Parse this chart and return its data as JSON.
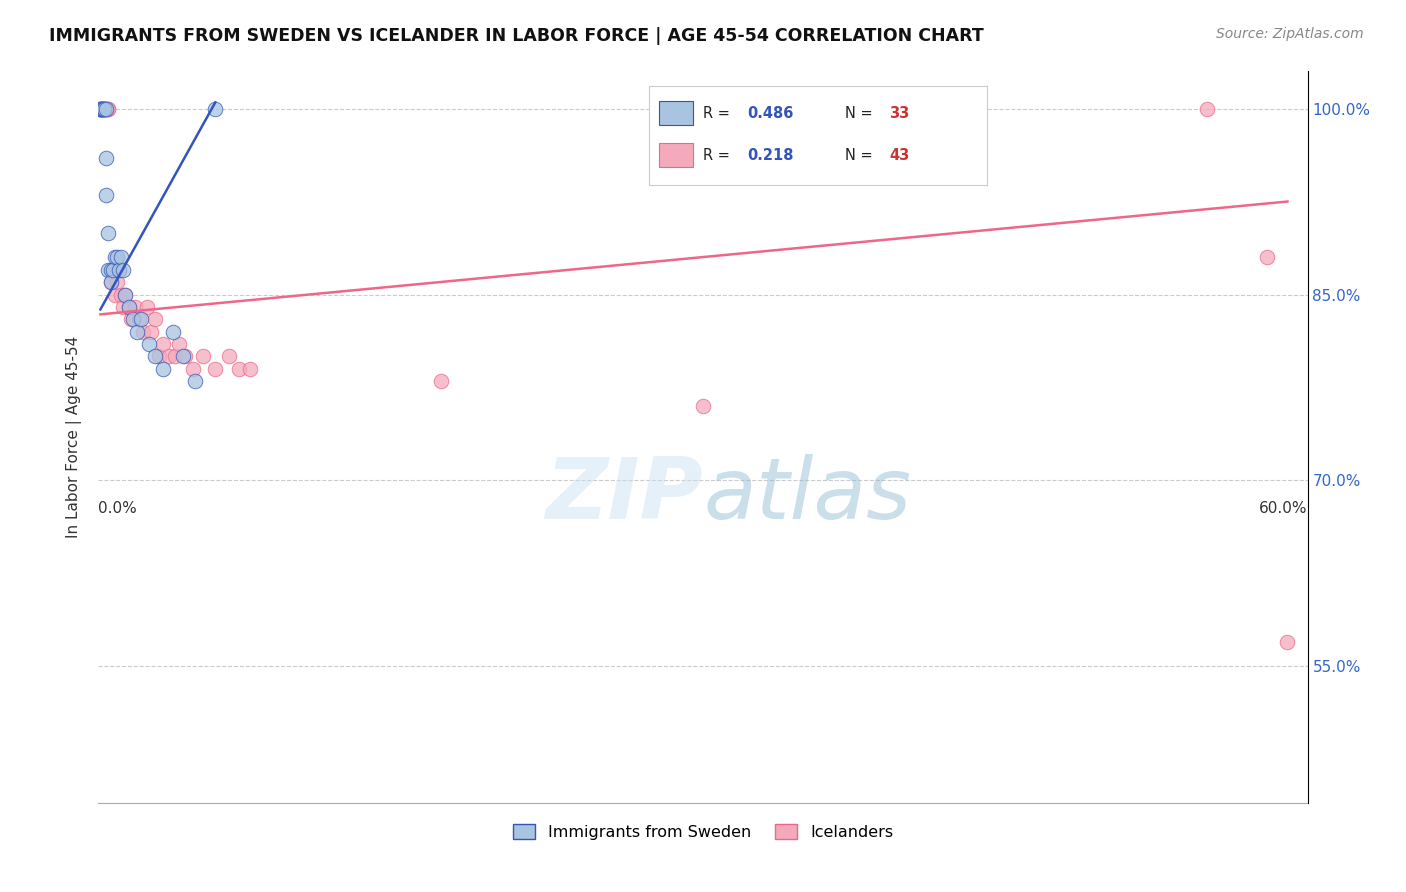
{
  "title": "IMMIGRANTS FROM SWEDEN VS ICELANDER IN LABOR FORCE | AGE 45-54 CORRELATION CHART",
  "source": "Source: ZipAtlas.com",
  "ylabel": "In Labor Force | Age 45-54",
  "ytick_labels": [
    "100.0%",
    "85.0%",
    "70.0%",
    "55.0%"
  ],
  "ytick_values": [
    1.0,
    0.85,
    0.7,
    0.55
  ],
  "xlim": [
    0.0,
    0.6
  ],
  "ylim": [
    0.44,
    1.03
  ],
  "color_blue": "#A8C4E0",
  "color_pink": "#F4AABB",
  "color_blue_line": "#3355BB",
  "color_pink_line": "#EE6688",
  "blue_points_x": [
    0.001,
    0.001,
    0.002,
    0.002,
    0.002,
    0.003,
    0.003,
    0.003,
    0.004,
    0.004,
    0.004,
    0.005,
    0.005,
    0.006,
    0.006,
    0.007,
    0.008,
    0.009,
    0.01,
    0.011,
    0.012,
    0.013,
    0.015,
    0.017,
    0.019,
    0.021,
    0.025,
    0.028,
    0.032,
    0.037,
    0.042,
    0.048,
    0.058
  ],
  "blue_points_y": [
    1.0,
    1.0,
    1.0,
    1.0,
    1.0,
    1.0,
    1.0,
    1.0,
    1.0,
    0.96,
    0.93,
    0.9,
    0.87,
    0.87,
    0.86,
    0.87,
    0.88,
    0.88,
    0.87,
    0.88,
    0.87,
    0.85,
    0.84,
    0.83,
    0.82,
    0.83,
    0.81,
    0.8,
    0.79,
    0.82,
    0.8,
    0.78,
    1.0
  ],
  "pink_points_x": [
    0.001,
    0.001,
    0.002,
    0.002,
    0.003,
    0.003,
    0.004,
    0.004,
    0.005,
    0.005,
    0.006,
    0.007,
    0.008,
    0.009,
    0.01,
    0.011,
    0.012,
    0.013,
    0.015,
    0.016,
    0.018,
    0.02,
    0.022,
    0.024,
    0.026,
    0.028,
    0.03,
    0.032,
    0.035,
    0.038,
    0.04,
    0.043,
    0.047,
    0.052,
    0.058,
    0.065,
    0.07,
    0.075,
    0.17,
    0.3,
    0.55,
    0.58,
    0.59
  ],
  "pink_points_y": [
    1.0,
    1.0,
    1.0,
    1.0,
    1.0,
    1.0,
    1.0,
    1.0,
    1.0,
    1.0,
    0.86,
    0.87,
    0.85,
    0.86,
    0.87,
    0.85,
    0.84,
    0.85,
    0.84,
    0.83,
    0.84,
    0.83,
    0.82,
    0.84,
    0.82,
    0.83,
    0.8,
    0.81,
    0.8,
    0.8,
    0.81,
    0.8,
    0.79,
    0.8,
    0.79,
    0.8,
    0.79,
    0.79,
    0.78,
    0.76,
    1.0,
    0.88,
    0.57
  ],
  "blue_trend_x": [
    0.001,
    0.058
  ],
  "blue_trend_y": [
    0.838,
    1.005
  ],
  "pink_trend_x": [
    0.001,
    0.59
  ],
  "pink_trend_y": [
    0.834,
    0.925
  ],
  "watermark": "ZIPatlas",
  "watermark_color": "#BBDDEE",
  "watermark_alpha": 0.5
}
